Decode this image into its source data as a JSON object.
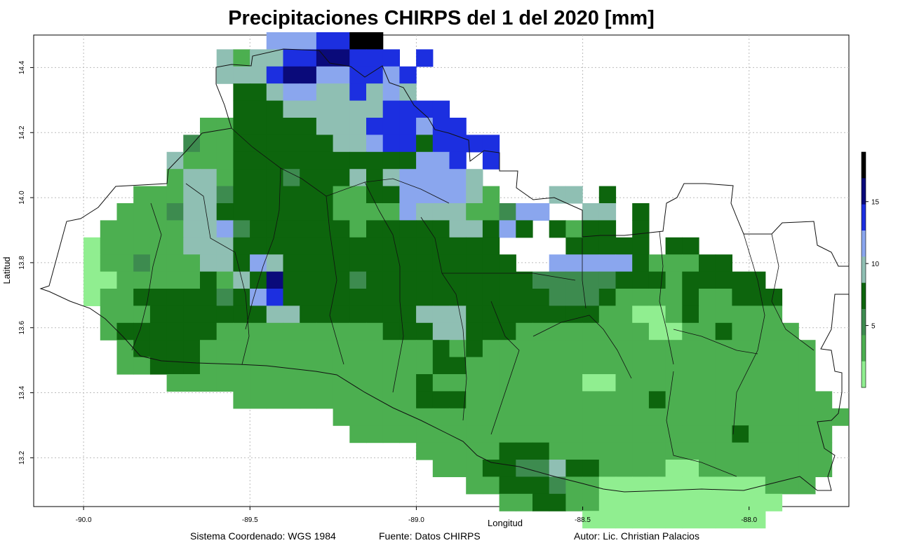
{
  "title": "Precipitaciones CHIRPS del 1  del  2020 [mm]",
  "credits": {
    "crs": "Sistema Coordenado: WGS 1984",
    "source": "Fuente: Datos CHIRPS",
    "author": "Autor: Lic. Christian Palacios"
  },
  "chart_data": {
    "type": "heatmap",
    "title": "Precipitaciones CHIRPS del 1  del  2020 [mm]",
    "xlabel": "Longitud",
    "ylabel": "Latitud",
    "x_ticks": [
      "-90.0",
      "-89.5",
      "-89.0",
      "-88.5",
      "-88.0"
    ],
    "y_ticks": [
      "13.2",
      "13.4",
      "13.6",
      "13.8",
      "14.0",
      "14.2",
      "14.4"
    ],
    "xlim": [
      -90.15,
      -87.7
    ],
    "ylim": [
      13.05,
      14.5
    ],
    "grid": true,
    "legend": {
      "position": "right",
      "ticks": [
        "5",
        "10",
        "15"
      ],
      "range": [
        0,
        19
      ],
      "colors": [
        "#90ee90",
        "#4caf50",
        "#3d8b4f",
        "#0d650d",
        "#8fbfb3",
        "#8aa6ee",
        "#1c2fe0",
        "#0a0a7a",
        "#000000"
      ]
    },
    "colors": {
      "very_low": "#90ee90",
      "low": "#4caf50",
      "mid_low": "#3d8b4f",
      "mid": "#0d650d",
      "teal": "#8fbfb3",
      "light_blue": "#8aa6ee",
      "blue": "#1c2fe0",
      "navy": "#0a0a7a",
      "black": "#000000"
    }
  }
}
